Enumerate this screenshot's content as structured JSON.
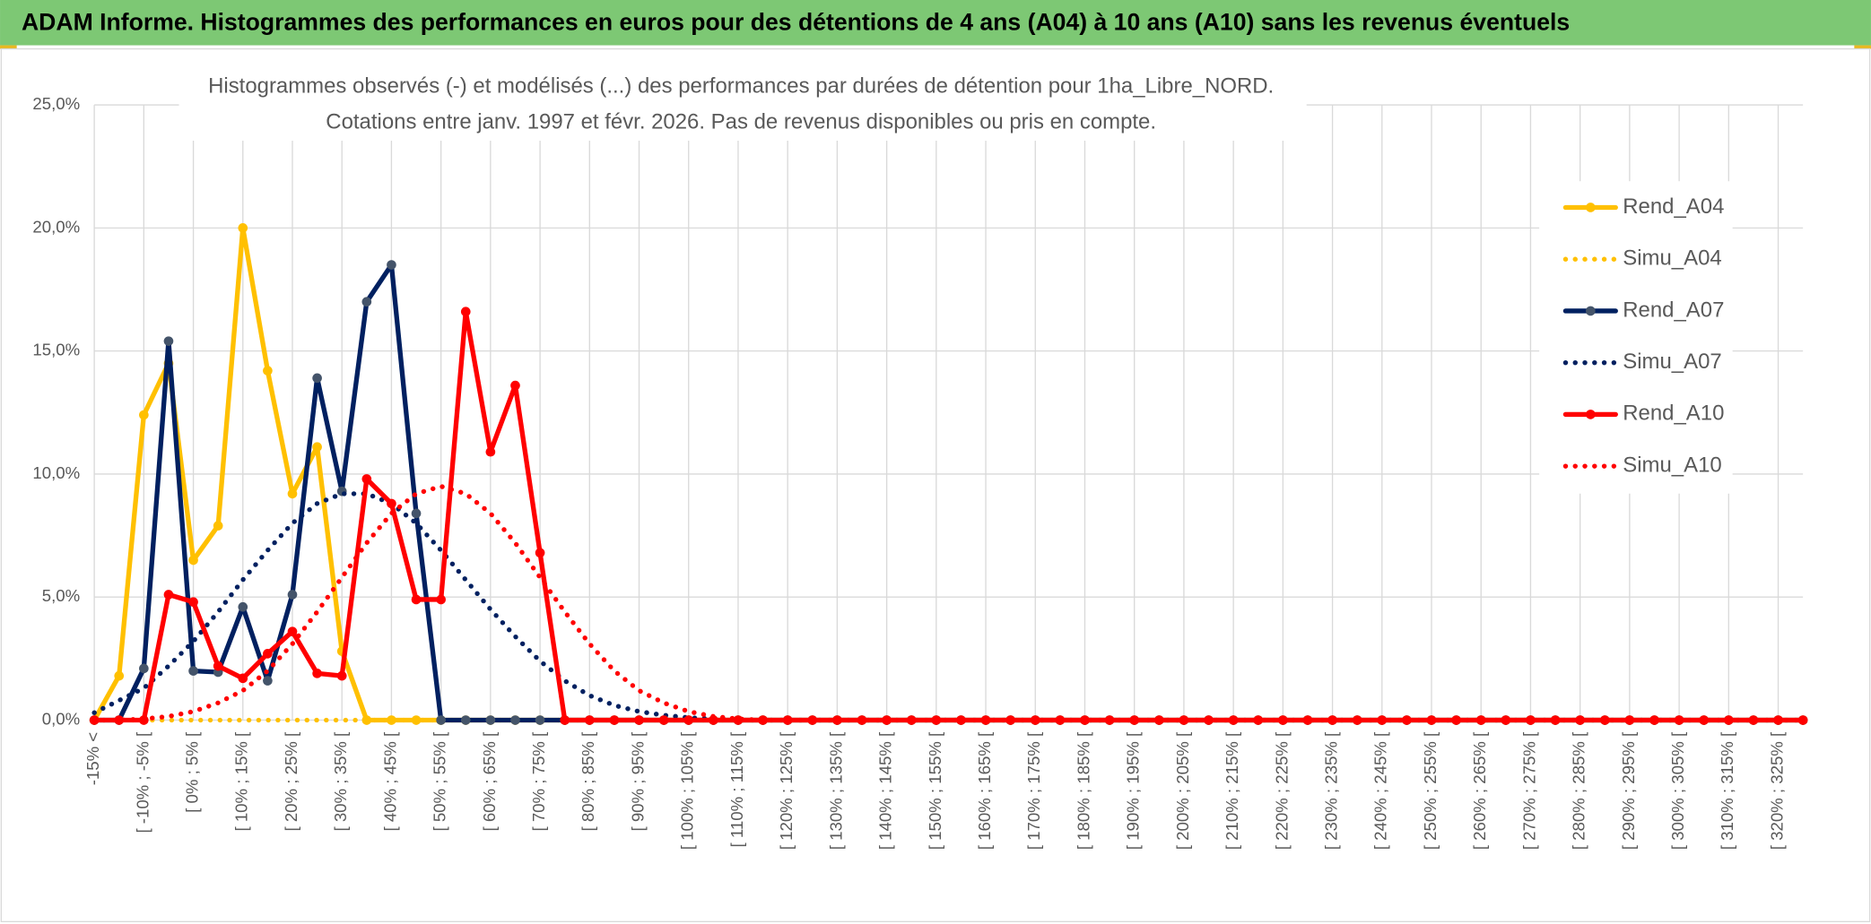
{
  "header": {
    "title": "ADAM Informe. Histogrammes des performances en euros pour des détentions de 4 ans (A04) à 10 ans (A10) sans les revenus éventuels"
  },
  "chart_data": {
    "type": "line",
    "title": "Histogrammes observés (-) et modélisés (...) des performances par durées de détention pour 1ha_Libre_NORD.",
    "subtitle": "Cotations entre janv. 1997 et févr. 2026. Pas de revenus disponibles ou pris en compte.",
    "categories": [
      "-15% <",
      null,
      "[ -10% ; -5% [",
      null,
      "[ 0% ; 5% [",
      null,
      "[ 10% ; 15% [",
      null,
      "[ 20% ; 25% [",
      null,
      "[ 30% ; 35% [",
      null,
      "[ 40% ; 45% [",
      null,
      "[ 50% ; 55% [",
      null,
      "[ 60% ; 65% [",
      null,
      "[ 70% ; 75% [",
      null,
      "[ 80% ; 85% [",
      null,
      "[ 90% ; 95% [",
      null,
      "[ 100% ; 105% [",
      null,
      "[ 110% ; 115% [",
      null,
      "[ 120% ; 125% [",
      null,
      "[ 130% ; 135% [",
      null,
      "[ 140% ; 145% [",
      null,
      "[ 150% ; 155% [",
      null,
      "[ 160% ; 165% [",
      null,
      "[ 170% ; 175% [",
      null,
      "[ 180% ; 185% [",
      null,
      "[ 190% ; 195% [",
      null,
      "[ 200% ; 205% [",
      null,
      "[ 210% ; 215% [",
      null,
      "[ 220% ; 225% [",
      null,
      "[ 230% ; 235% [",
      null,
      "[ 240% ; 245% [",
      null,
      "[ 250% ; 255% [",
      null,
      "[ 260% ; 265% [",
      null,
      "[ 270% ; 275% [",
      null,
      "[ 280% ; 285% [",
      null,
      "[ 290% ; 295% [",
      null,
      "[ 300% ; 305% [",
      null,
      "[ 310% ; 315% [",
      null,
      "[ 320% ; 325% [",
      null
    ],
    "series": [
      {
        "name": "Rend_A04",
        "color": "#FFC000",
        "marker_color": "#FFC000",
        "line_style": "solid",
        "markers": true,
        "values": [
          0,
          1.8,
          12.4,
          14.5,
          6.5,
          7.9,
          20.0,
          14.2,
          9.2,
          11.1,
          2.8,
          0,
          0,
          0,
          0,
          0,
          0,
          0,
          0,
          0,
          0,
          0,
          0,
          0,
          0,
          0,
          0,
          0,
          0,
          0,
          0,
          0,
          0,
          0,
          0,
          0,
          0,
          0,
          0,
          0,
          0,
          0,
          0,
          0,
          0,
          0,
          0,
          0,
          0,
          0,
          0,
          0,
          0,
          0,
          0,
          0,
          0,
          0,
          0,
          0,
          0,
          0,
          0,
          0,
          0,
          0,
          0,
          0,
          0,
          0
        ]
      },
      {
        "name": "Simu_A04",
        "color": "#FFC000",
        "line_style": "dotted",
        "markers": false,
        "values": [
          0,
          0,
          0,
          0,
          0,
          0,
          0,
          0,
          0,
          0,
          0,
          0,
          0,
          0,
          0,
          0,
          0,
          0,
          0,
          0,
          0,
          0,
          0,
          0,
          0,
          0,
          0,
          0,
          0,
          0,
          0,
          0,
          0,
          0,
          0,
          0,
          0,
          0,
          0,
          0,
          0,
          0,
          0,
          0,
          0,
          0,
          0,
          0,
          0,
          0,
          0,
          0,
          0,
          0,
          0,
          0,
          0,
          0,
          0,
          0,
          0,
          0,
          0,
          0,
          0,
          0,
          0,
          0,
          0,
          0
        ]
      },
      {
        "name": "Rend_A07",
        "color": "#002060",
        "marker_color": "#44546A",
        "line_style": "solid",
        "markers": true,
        "values": [
          0,
          0,
          2.1,
          15.4,
          2.0,
          1.95,
          4.6,
          1.6,
          5.1,
          13.9,
          9.3,
          17.0,
          18.5,
          8.4,
          0,
          0,
          0,
          0,
          0,
          0,
          0,
          0,
          0,
          0,
          0,
          0,
          0,
          0,
          0,
          0,
          0,
          0,
          0,
          0,
          0,
          0,
          0,
          0,
          0,
          0,
          0,
          0,
          0,
          0,
          0,
          0,
          0,
          0,
          0,
          0,
          0,
          0,
          0,
          0,
          0,
          0,
          0,
          0,
          0,
          0,
          0,
          0,
          0,
          0,
          0,
          0,
          0,
          0,
          0,
          0
        ]
      },
      {
        "name": "Simu_A07",
        "color": "#002060",
        "line_style": "dotted",
        "markers": false,
        "values": [
          0.3,
          0.8,
          1.3,
          2.2,
          3.2,
          4.4,
          5.7,
          6.9,
          8.0,
          8.8,
          9.2,
          9.2,
          8.8,
          8.0,
          6.9,
          5.7,
          4.5,
          3.4,
          2.4,
          1.6,
          1.0,
          0.6,
          0.35,
          0.2,
          0.1,
          0.05,
          0,
          0,
          0,
          0,
          0,
          0,
          0,
          0,
          0,
          0,
          0,
          0,
          0,
          0,
          0,
          0,
          0,
          0,
          0,
          0,
          0,
          0,
          0,
          0,
          0,
          0,
          0,
          0,
          0,
          0,
          0,
          0,
          0,
          0,
          0,
          0,
          0,
          0,
          0,
          0,
          0,
          0,
          0,
          0
        ]
      },
      {
        "name": "Rend_A10",
        "color": "#FF0000",
        "marker_color": "#FF0000",
        "line_style": "solid",
        "markers": true,
        "values": [
          0,
          0,
          0,
          5.1,
          4.8,
          2.2,
          1.7,
          2.7,
          3.6,
          1.9,
          1.8,
          9.8,
          8.8,
          4.9,
          4.9,
          16.6,
          10.9,
          13.6,
          6.8,
          0,
          0,
          0,
          0,
          0,
          0,
          0,
          0,
          0,
          0,
          0,
          0,
          0,
          0,
          0,
          0,
          0,
          0,
          0,
          0,
          0,
          0,
          0,
          0,
          0,
          0,
          0,
          0,
          0,
          0,
          0,
          0,
          0,
          0,
          0,
          0,
          0,
          0,
          0,
          0,
          0,
          0,
          0,
          0,
          0,
          0,
          0,
          0,
          0,
          0,
          0
        ]
      },
      {
        "name": "Simu_A10",
        "color": "#FF0000",
        "line_style": "dotted",
        "markers": false,
        "values": [
          0,
          0,
          0.05,
          0.15,
          0.35,
          0.7,
          1.2,
          2.0,
          3.1,
          4.4,
          5.8,
          7.2,
          8.4,
          9.2,
          9.5,
          9.2,
          8.4,
          7.2,
          5.8,
          4.4,
          3.1,
          2.0,
          1.2,
          0.7,
          0.35,
          0.15,
          0.05,
          0,
          0,
          0,
          0,
          0,
          0,
          0,
          0,
          0,
          0,
          0,
          0,
          0,
          0,
          0,
          0,
          0,
          0,
          0,
          0,
          0,
          0,
          0,
          0,
          0,
          0,
          0,
          0,
          0,
          0,
          0,
          0,
          0,
          0,
          0,
          0,
          0,
          0,
          0,
          0,
          0,
          0,
          0
        ]
      }
    ],
    "ylim": [
      0,
      25
    ],
    "yticks": [
      {
        "value": 0,
        "label": "0,0%"
      },
      {
        "value": 5,
        "label": "5,0%"
      },
      {
        "value": 10,
        "label": "10,0%"
      },
      {
        "value": 15,
        "label": "15,0%"
      },
      {
        "value": 20,
        "label": "20,0%"
      },
      {
        "value": 25,
        "label": "25,0%"
      }
    ],
    "grid": true,
    "legend": "right"
  }
}
